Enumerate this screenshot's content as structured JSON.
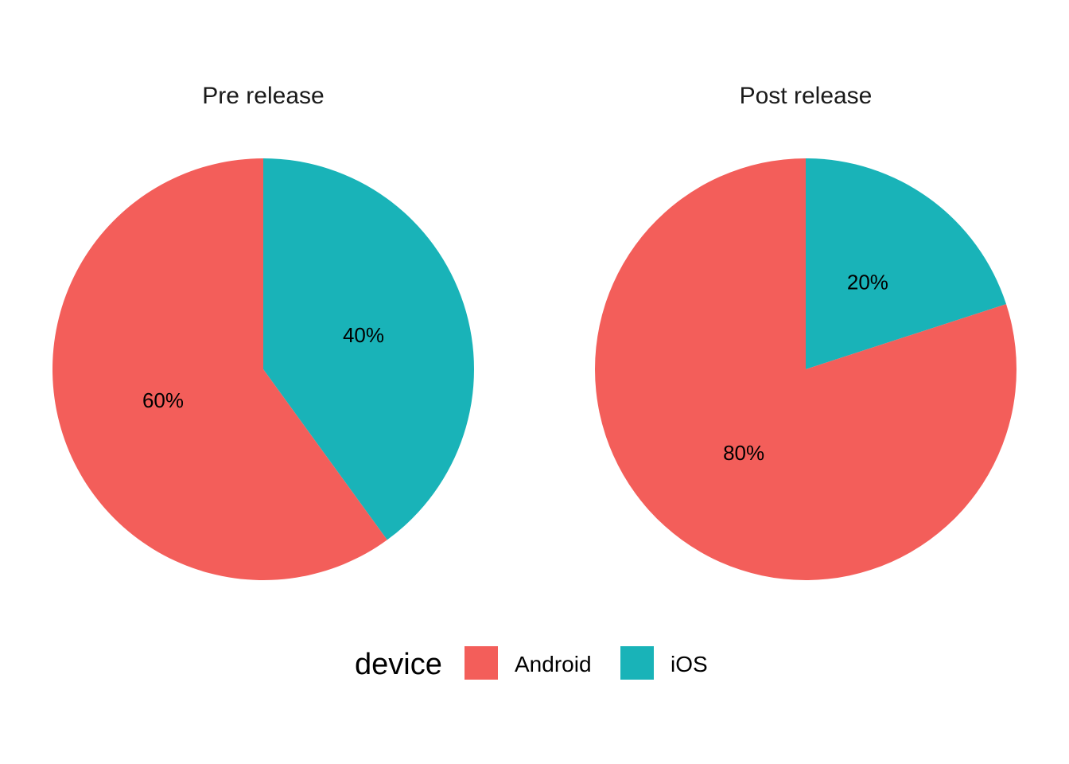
{
  "chart_data": {
    "type": "pie",
    "facets": [
      {
        "title": "Pre release",
        "slices": [
          {
            "category": "iOS",
            "value": 40,
            "label": "40%"
          },
          {
            "category": "Android",
            "value": 60,
            "label": "60%"
          }
        ]
      },
      {
        "title": "Post release",
        "slices": [
          {
            "category": "iOS",
            "value": 20,
            "label": "20%"
          },
          {
            "category": "Android",
            "value": 80,
            "label": "80%"
          }
        ]
      }
    ],
    "legend": {
      "title": "device",
      "position": "bottom",
      "items": [
        {
          "label": "Android",
          "color": "#F35E5A"
        },
        {
          "label": "iOS",
          "color": "#19B3B8"
        }
      ]
    },
    "start": "top",
    "direction": "clockwise"
  }
}
